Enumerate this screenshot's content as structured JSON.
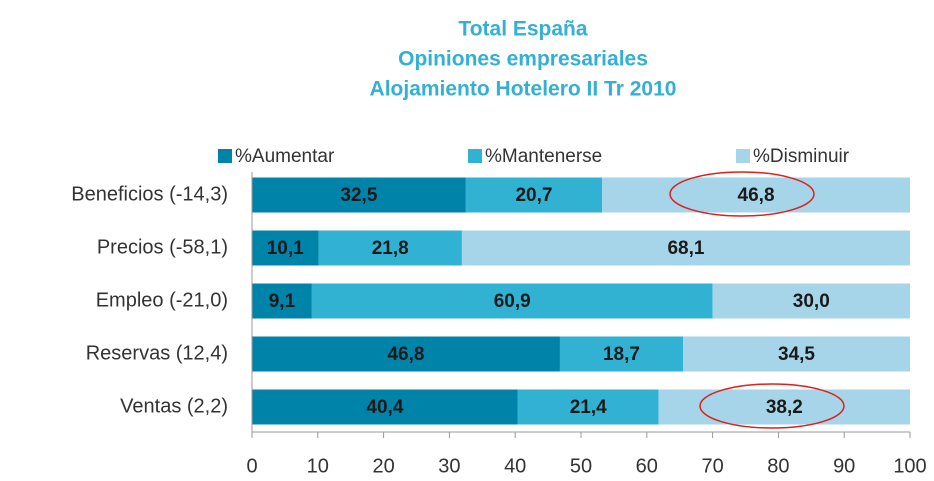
{
  "chart_data": {
    "type": "stacked-barh",
    "title": [
      "Total España",
      "Opiniones empresariales",
      "Alojamiento Hotelero II Tr 2010"
    ],
    "categories": [
      "Beneficios (-14,3)",
      "Precios (-58,1)",
      "Empleo (-21,0)",
      "Reservas (12,4)",
      "Ventas (2,2)"
    ],
    "series": [
      {
        "name": "%Aumentar",
        "color": "#0083a9",
        "values": [
          32.5,
          10.1,
          9.1,
          46.8,
          40.4
        ],
        "value_labels": [
          "32,5",
          "10,1",
          "9,1",
          "46,8",
          "40,4"
        ]
      },
      {
        "name": "%Mantenerse",
        "color": "#31b2d3",
        "values": [
          20.7,
          21.8,
          60.9,
          18.7,
          21.4
        ],
        "value_labels": [
          "20,7",
          "21,8",
          "60,9",
          "18,7",
          "21,4"
        ]
      },
      {
        "name": "%Disminuir",
        "color": "#a6d5ea",
        "values": [
          46.8,
          68.1,
          30.0,
          34.5,
          38.2
        ],
        "value_labels": [
          "46,8",
          "68,1",
          "30,0",
          "34,5",
          "38,2"
        ]
      }
    ],
    "xlim": [
      0,
      100
    ],
    "xticks": [
      0,
      10,
      20,
      30,
      40,
      50,
      60,
      70,
      80,
      90,
      100
    ],
    "legend": "top"
  }
}
